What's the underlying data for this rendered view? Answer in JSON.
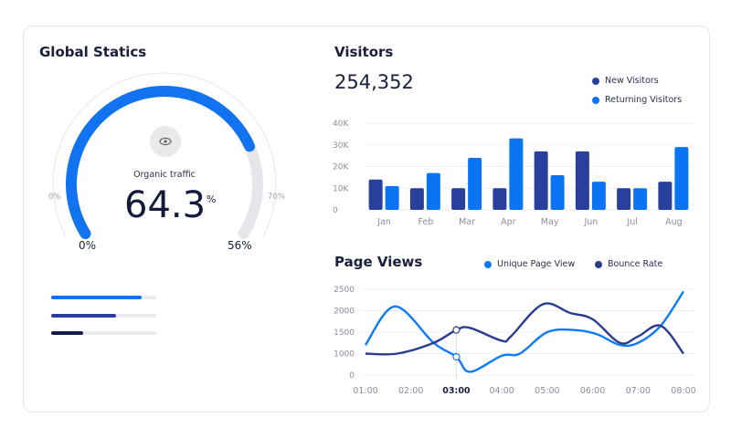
{
  "global": {
    "title": "Global Statics",
    "gauge": {
      "label": "Organic traffic",
      "value": "64.3",
      "unit": "%",
      "outer_min_label": "0%",
      "outer_max_label": "70%",
      "inner_min_label": "0%",
      "inner_max_label": "56%",
      "arc_fill_percent": 77,
      "icon": "eye-icon"
    },
    "progress_bars": [
      {
        "fraction": 0.86,
        "color": "#1173f0"
      },
      {
        "fraction": 0.62,
        "color": "#2a3f9c"
      },
      {
        "fraction": 0.3,
        "color": "#141b4a"
      }
    ]
  },
  "visitors": {
    "title": "Visitors",
    "total": "254,352",
    "legend": [
      "New Visitors",
      "Returning Visitors"
    ]
  },
  "page_views": {
    "title": "Page Views",
    "legend": [
      "Unique Page View",
      "Bounce Rate"
    ]
  },
  "chart_data": [
    {
      "type": "bar",
      "categories": [
        "Jan",
        "Feb",
        "Mar",
        "Apr",
        "May",
        "Jun",
        "Jul",
        "Aug"
      ],
      "series": [
        {
          "name": "New Visitors",
          "color": "#28409c",
          "values": [
            14,
            10,
            10,
            10,
            27,
            27,
            10,
            13
          ]
        },
        {
          "name": "Returning Visitors",
          "color": "#0a74f5",
          "values": [
            11,
            17,
            24,
            33,
            16,
            13,
            10,
            29
          ]
        }
      ],
      "unit": "K",
      "yticks": [
        "0",
        "10K",
        "20K",
        "30K",
        "40K"
      ],
      "ylim": [
        0,
        40
      ],
      "grid": true,
      "legend": "top-right"
    },
    {
      "type": "line",
      "x_labels": [
        "01:00",
        "02:00",
        "03:00",
        "04:00",
        "05:00",
        "06:00",
        "07:00",
        "08:00"
      ],
      "highlighted_x": "03:00",
      "yticks": [
        0,
        1000,
        1500,
        2000,
        2500
      ],
      "grid": true,
      "legend": "top",
      "series": [
        {
          "name": "Unique Page View",
          "color": "#0d7bf7",
          "points": [
            [
              1,
              1200
            ],
            [
              1.65,
              2100
            ],
            [
              2.5,
              1250
            ],
            [
              3,
              850
            ],
            [
              3.3,
              150
            ],
            [
              4,
              900
            ],
            [
              4.4,
              1000
            ],
            [
              5,
              1500
            ],
            [
              5.6,
              1550
            ],
            [
              6.1,
              1450
            ],
            [
              6.6,
              1200
            ],
            [
              7,
              1250
            ],
            [
              7.5,
              1650
            ],
            [
              8,
              2450
            ]
          ]
        },
        {
          "name": "Bounce Rate",
          "color": "#2b3c8f",
          "points": [
            [
              1,
              1000
            ],
            [
              1.7,
              1000
            ],
            [
              2.5,
              1250
            ],
            [
              3,
              1550
            ],
            [
              3.3,
              1600
            ],
            [
              4,
              1300
            ],
            [
              4.2,
              1400
            ],
            [
              4.9,
              2150
            ],
            [
              5.5,
              1950
            ],
            [
              6,
              1800
            ],
            [
              6.6,
              1250
            ],
            [
              7,
              1400
            ],
            [
              7.5,
              1650
            ],
            [
              8,
              1000
            ]
          ]
        }
      ]
    }
  ]
}
